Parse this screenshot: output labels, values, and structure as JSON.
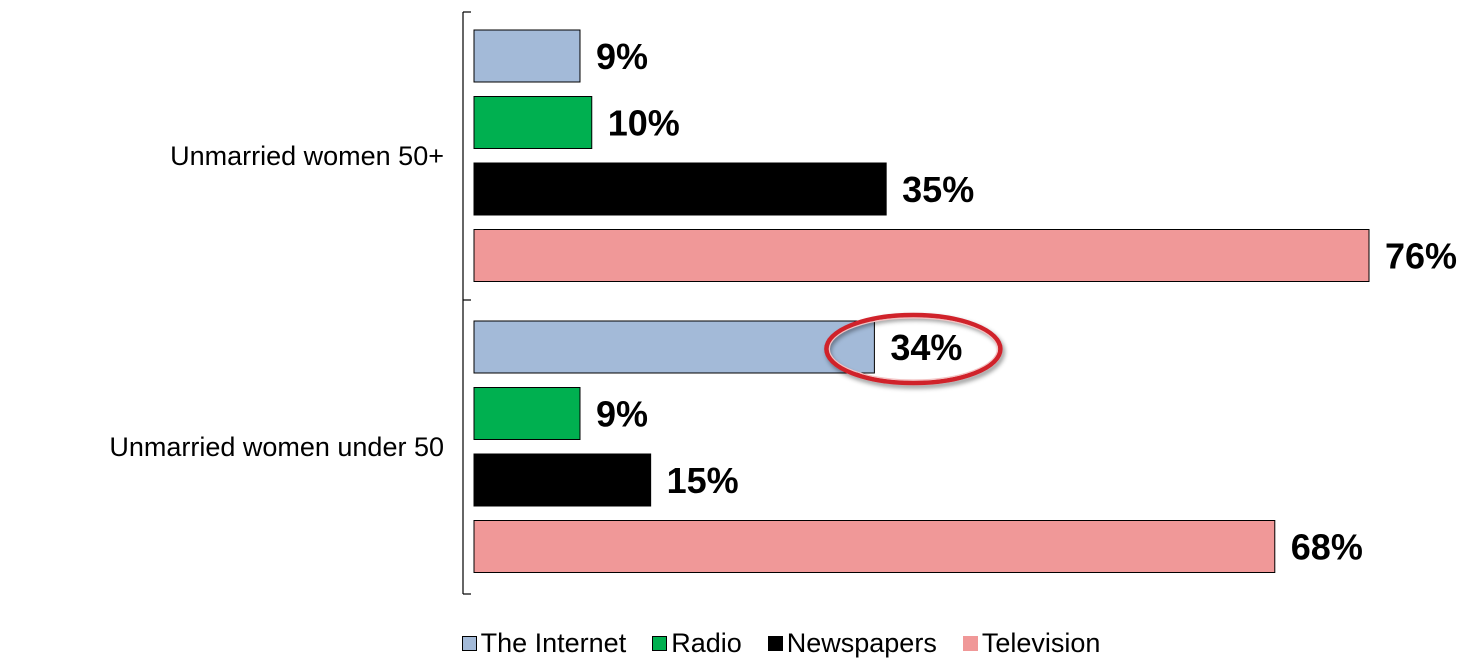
{
  "chart_data": {
    "type": "bar",
    "orientation": "horizontal",
    "categories": [
      "Unmarried women 50+",
      "Unmarried women under 50"
    ],
    "series": [
      {
        "name": "The Internet",
        "color": "#a3bad8",
        "values": [
          9,
          34
        ],
        "labels": [
          "9%",
          "34%"
        ]
      },
      {
        "name": "Radio",
        "color": "#00b050",
        "values": [
          10,
          9
        ],
        "labels": [
          "10%",
          "9%"
        ]
      },
      {
        "name": "Newspapers",
        "color": "#000000",
        "values": [
          35,
          15
        ],
        "labels": [
          "35%",
          "15%"
        ]
      },
      {
        "name": "Television",
        "color": "#f09898",
        "values": [
          76,
          68
        ],
        "labels": [
          "76%",
          "68%"
        ]
      }
    ],
    "xlim": [
      0,
      76
    ],
    "grid": false,
    "legend": "bottom",
    "annotations": [
      {
        "type": "ellipse-highlight",
        "target": "Unmarried women under 50 / The Internet",
        "color": "#d0202c"
      }
    ]
  }
}
